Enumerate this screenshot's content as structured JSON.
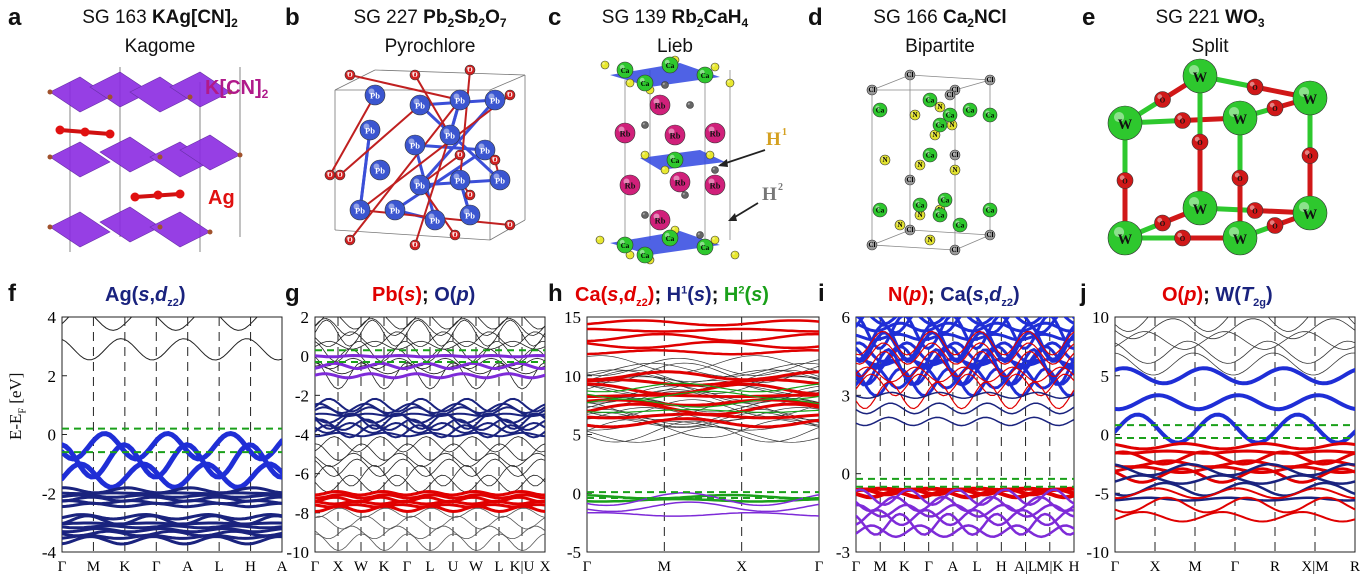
{
  "top_panels": [
    {
      "letter": "a",
      "sg": "SG 163",
      "formula": "KAg[CN]",
      "formula_sub": "2",
      "lattice": "Kagome",
      "labels": [
        "K[CN]",
        "Ag"
      ],
      "label_subs": [
        "2",
        ""
      ]
    },
    {
      "letter": "b",
      "sg": "SG 227",
      "formula": "Pb",
      "formula_parts": [
        "Pb",
        "2",
        "Sb",
        "2",
        "O",
        "7"
      ],
      "lattice": "Pyrochlore",
      "atoms": [
        "Pb",
        "O"
      ]
    },
    {
      "letter": "c",
      "sg": "SG 139",
      "formula_parts": [
        "Rb",
        "2",
        "CaH",
        "4",
        ""
      ],
      "lattice": "Lieb",
      "atoms": [
        "Ca",
        "Rb"
      ],
      "labels": [
        "H",
        "H"
      ],
      "label_sups": [
        "1",
        "2"
      ]
    },
    {
      "letter": "d",
      "sg": "SG 166",
      "formula_parts": [
        "Ca",
        "2",
        "NCl",
        "",
        ""
      ],
      "lattice": "Bipartite",
      "atoms": [
        "Ca",
        "N",
        "Cl"
      ]
    },
    {
      "letter": "e",
      "sg": "SG 221",
      "formula_parts": [
        "WO",
        "3",
        "",
        "",
        ""
      ],
      "lattice": "Split",
      "atoms": [
        "W",
        "O"
      ]
    }
  ],
  "bands": [
    {
      "letter": "f",
      "title_html": "Ag(<i>s</i>,<i>d</i><sub>z²</sub>)",
      "ylabel": "E-E",
      "ylabel_sub": "F",
      "ylabel_unit": " [eV]",
      "yticks": [
        "4",
        "2",
        "0",
        "-2",
        "-4"
      ],
      "ymin": -4,
      "ymax": 4,
      "xticks": [
        "Γ",
        "M",
        "K",
        "Γ",
        "A",
        "L",
        "H",
        "A"
      ]
    },
    {
      "letter": "g",
      "ylabel": "",
      "yticks": [
        "2",
        "0",
        "-2",
        "-4",
        "-6",
        "-8",
        "-10"
      ],
      "ymin": -10,
      "ymax": 2,
      "xticks": [
        "Γ",
        "X",
        "W",
        "K",
        "Γ",
        "L",
        "U",
        "W",
        "L",
        "K|U",
        "X"
      ]
    },
    {
      "letter": "h",
      "yticks": [
        "15",
        "10",
        "5",
        "0",
        "-5"
      ],
      "ymin": -5,
      "ymax": 15,
      "xticks": [
        "Γ",
        "M",
        "X",
        "Γ"
      ]
    },
    {
      "letter": "i",
      "yticks": [
        "6",
        "3",
        "0",
        "-3"
      ],
      "ymin": -3,
      "ymax": 6,
      "xticks": [
        "Γ",
        "M",
        "K",
        "Γ",
        "A",
        "L",
        "H",
        "A|L",
        "M|K",
        "H"
      ]
    },
    {
      "letter": "j",
      "yticks": [
        "10",
        "5",
        "0",
        "-5",
        "-10"
      ],
      "ymin": -10,
      "ymax": 10,
      "xticks": [
        "Γ",
        "X",
        "M",
        "Γ",
        "R",
        "X|M",
        "R"
      ]
    }
  ],
  "band_titles": {
    "f": [
      "Ag(",
      "s",
      ",",
      "d",
      "z2",
      ")"
    ],
    "g": [
      "Pb(",
      "s",
      "); ",
      "O(",
      "p",
      ")"
    ],
    "h": [
      "Ca(",
      "s",
      ",",
      "d",
      "z2",
      "); ",
      "H",
      "1",
      "(",
      "s",
      "); ",
      "H",
      "2",
      "(",
      "s",
      ")"
    ],
    "i": [
      "N(",
      "p",
      "); ",
      "Ca(",
      "s",
      ",",
      "d",
      "z2",
      ")"
    ],
    "j": [
      "O(",
      "p",
      "); ",
      "W(",
      "T",
      "2g",
      ")"
    ]
  },
  "colors": {
    "red": "#e00000",
    "navy": "#1a237e",
    "blue": "#1f2ed6",
    "green": "#1aa01a",
    "purple": "#7e2bd8",
    "dashgreen": "#1aa01a"
  }
}
